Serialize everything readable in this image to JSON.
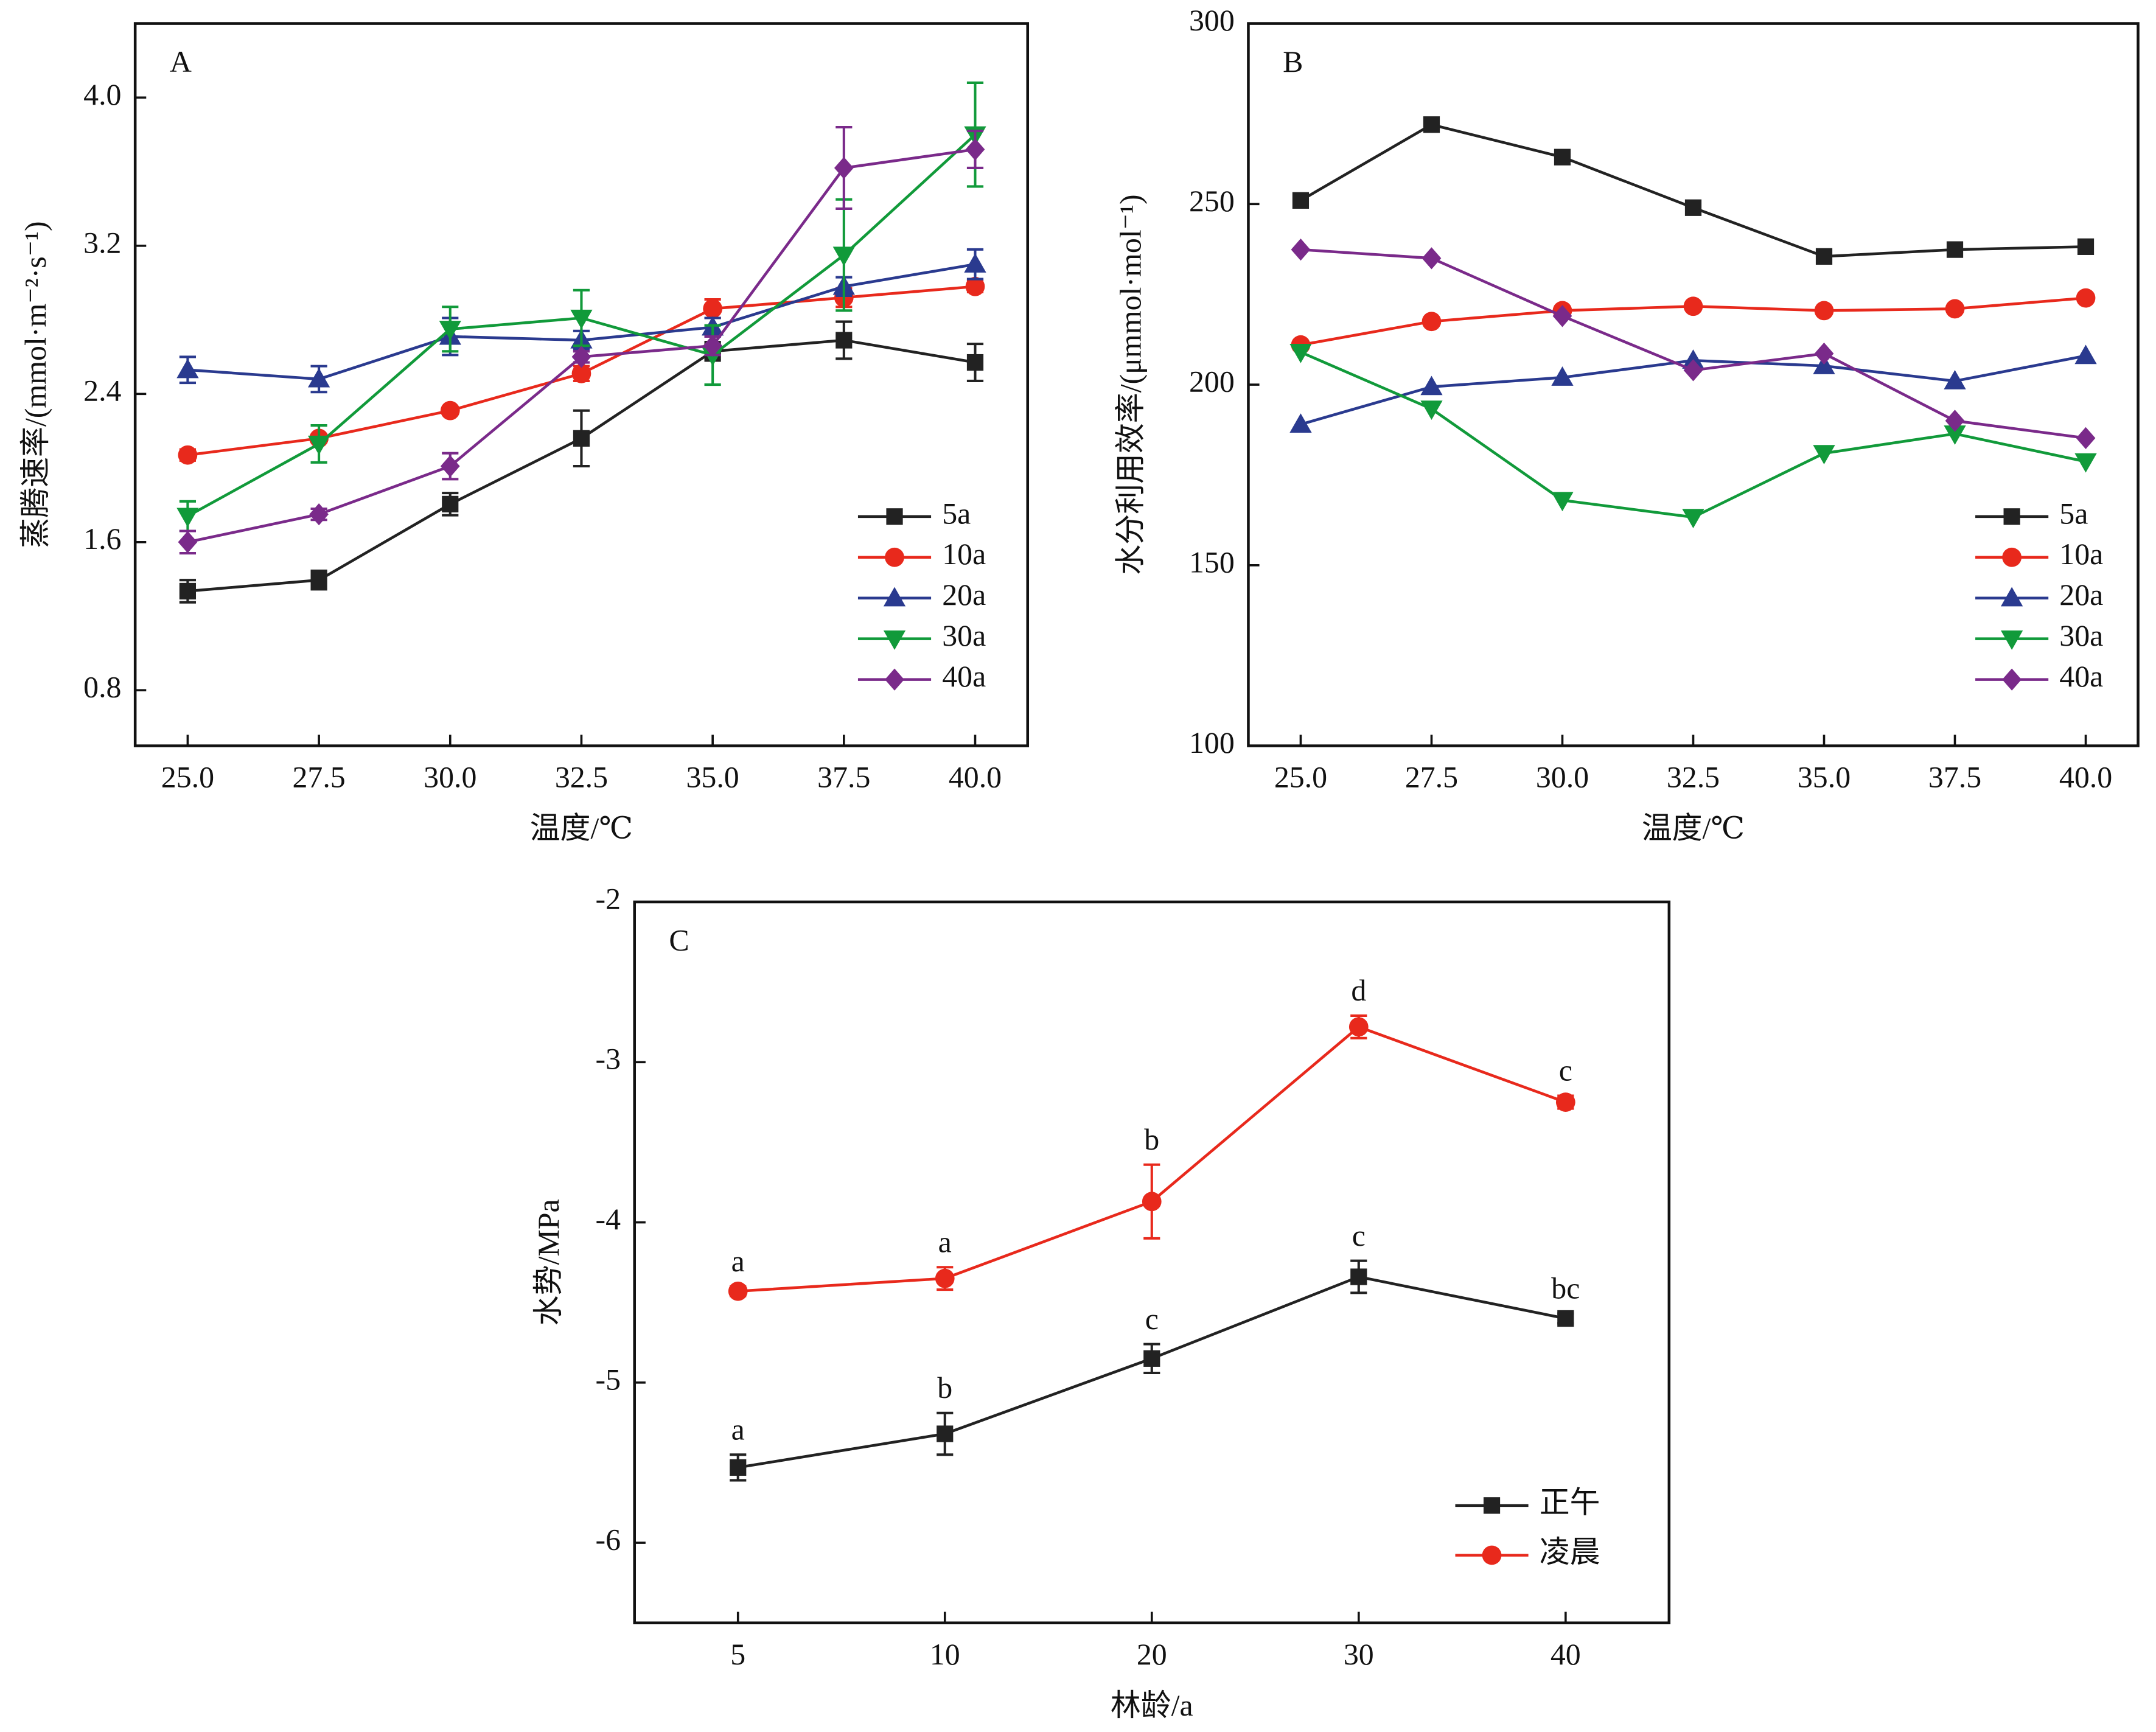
{
  "chart_data": [
    {
      "type": "line",
      "panel_label": "A",
      "xlabel": "温度/℃",
      "ylabel": "蒸腾速率/(mmol·m⁻²·s⁻¹)",
      "x": [
        25,
        27.5,
        30,
        32.5,
        35,
        37.5,
        40
      ],
      "xlim": [
        24,
        41
      ],
      "xticks": [
        {
          "value": 25,
          "label": "25.0"
        },
        27.5,
        {
          "value": 30,
          "label": "30.0"
        },
        32.5,
        {
          "value": 35,
          "label": "35.0"
        },
        37.5,
        {
          "value": 40,
          "label": "40.0"
        }
      ],
      "ylim": [
        0.5,
        4.4
      ],
      "yticks": [
        0.8,
        1.6,
        2.4,
        3.2,
        {
          "value": 4,
          "label": "4.0"
        }
      ],
      "legend": "lower right",
      "series": [
        {
          "name": "5a",
          "color": "#222222",
          "marker": "square",
          "values": [
            1.335,
            1.395,
            1.805,
            2.16,
            2.63,
            2.69,
            2.57
          ],
          "errors": [
            0.06,
            0.05,
            0.06,
            0.15,
            0.05,
            0.1,
            0.1
          ]
        },
        {
          "name": "10a",
          "color": "#e8291c",
          "marker": "circle",
          "values": [
            2.07,
            2.16,
            2.31,
            2.51,
            2.86,
            2.92,
            2.98
          ],
          "errors": [
            0.03,
            0.02,
            0.02,
            0.04,
            0.05,
            0.05,
            0.03
          ]
        },
        {
          "name": "20a",
          "color": "#2a3a8f",
          "marker": "triangle-up",
          "values": [
            2.53,
            2.48,
            2.71,
            2.69,
            2.76,
            2.98,
            3.1
          ],
          "errors": [
            0.07,
            0.07,
            0.1,
            0.05,
            0.05,
            0.05,
            0.08
          ]
        },
        {
          "name": "30a",
          "color": "#119a3a",
          "marker": "triangle-down",
          "values": [
            1.74,
            2.13,
            2.75,
            2.81,
            2.61,
            3.15,
            3.8
          ],
          "errors": [
            0.08,
            0.1,
            0.12,
            0.15,
            0.16,
            0.3,
            0.28
          ]
        },
        {
          "name": "40a",
          "color": "#7a2a8a",
          "marker": "diamond",
          "values": [
            1.6,
            1.75,
            2.01,
            2.6,
            2.66,
            3.62,
            3.72
          ],
          "errors": [
            0.06,
            0.03,
            0.07,
            0.03,
            0.05,
            0.22,
            0.1
          ]
        }
      ]
    },
    {
      "type": "line",
      "panel_label": "B",
      "xlabel": "温度/℃",
      "ylabel": "水分利用效率/(μmmol·mol⁻¹)",
      "x": [
        25,
        27.5,
        30,
        32.5,
        35,
        37.5,
        40
      ],
      "xlim": [
        24,
        41
      ],
      "xticks": [
        {
          "value": 25,
          "label": "25.0"
        },
        27.5,
        {
          "value": 30,
          "label": "30.0"
        },
        32.5,
        {
          "value": 35,
          "label": "35.0"
        },
        37.5,
        {
          "value": 40,
          "label": "40.0"
        }
      ],
      "ylim": [
        100,
        300
      ],
      "yticks": [
        100,
        150,
        200,
        250,
        300
      ],
      "legend": "lower right",
      "series": [
        {
          "name": "5a",
          "color": "#222222",
          "marker": "square",
          "values": [
            251,
            272,
            263,
            249,
            235.5,
            237.4,
            238.2
          ]
        },
        {
          "name": "10a",
          "color": "#e8291c",
          "marker": "circle",
          "values": [
            211,
            217.5,
            220.5,
            221.7,
            220.5,
            221,
            224
          ]
        },
        {
          "name": "20a",
          "color": "#2a3a8f",
          "marker": "triangle-up",
          "values": [
            189,
            199.4,
            202,
            206.7,
            205.2,
            201,
            208
          ]
        },
        {
          "name": "30a",
          "color": "#119a3a",
          "marker": "triangle-down",
          "values": [
            209,
            193.3,
            168,
            163.3,
            181,
            186.4,
            178.7
          ]
        },
        {
          "name": "40a",
          "color": "#7a2a8a",
          "marker": "diamond",
          "values": [
            237.4,
            235,
            219,
            204,
            208.6,
            190,
            185.2
          ]
        }
      ]
    },
    {
      "type": "line",
      "panel_label": "C",
      "xlabel": "林龄/a",
      "ylabel": "水势/MPa",
      "categories": [
        "5",
        "10",
        "20",
        "30",
        "40"
      ],
      "ylim": [
        -6.5,
        -2
      ],
      "yticks": [
        -6,
        -5,
        -4,
        -3,
        -2
      ],
      "legend": "lower right",
      "series": [
        {
          "name": "正午",
          "color": "#222222",
          "marker": "square",
          "values": [
            -5.53,
            -5.32,
            -4.85,
            -4.34,
            -4.6
          ],
          "errors": [
            0.08,
            0.13,
            0.09,
            0.1,
            0.03
          ],
          "labels": [
            "a",
            "b",
            "c",
            "c",
            "bc"
          ]
        },
        {
          "name": "凌晨",
          "color": "#e8291c",
          "marker": "circle",
          "values": [
            -4.43,
            -4.35,
            -3.87,
            -2.78,
            -3.25
          ],
          "errors": [
            0.03,
            0.07,
            0.23,
            0.07,
            0.04
          ],
          "labels": [
            "a",
            "a",
            "b",
            "d",
            "c"
          ]
        }
      ]
    }
  ]
}
